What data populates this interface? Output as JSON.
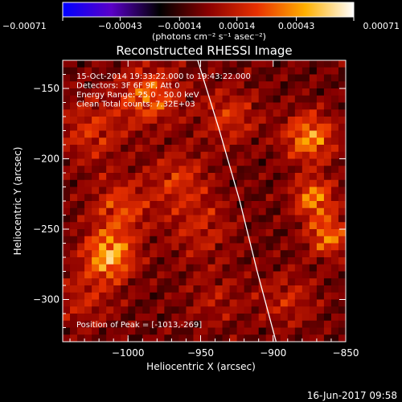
{
  "chart_data": {
    "type": "heatmap",
    "title": "Reconstructed RHESSI Image",
    "xlabel": "Heliocentric X (arcsec)",
    "ylabel": "Heliocentric Y (arcsec)",
    "xlim": [
      -1045,
      -850
    ],
    "ylim": [
      -330,
      -130
    ],
    "x_ticks": [
      {
        "value": -1000,
        "label": "−1000"
      },
      {
        "value": -950,
        "label": "−950"
      },
      {
        "value": -900,
        "label": "−900"
      },
      {
        "value": -850,
        "label": "−850"
      }
    ],
    "y_ticks": [
      {
        "value": -150,
        "label": "−150"
      },
      {
        "value": -200,
        "label": "−200"
      },
      {
        "value": -250,
        "label": "−250"
      },
      {
        "value": -300,
        "label": "−300"
      }
    ],
    "colorbar": {
      "range": [
        -0.00071,
        0.00071
      ],
      "ticks": [
        {
          "value": -0.00071,
          "label": "−0.00071"
        },
        {
          "value": -0.00043,
          "label": "−0.00043"
        },
        {
          "value": -0.00014,
          "label": "−0.00014"
        },
        {
          "value": 0.00014,
          "label": "0.00014"
        },
        {
          "value": 0.00043,
          "label": "0.00043"
        },
        {
          "value": 0.00071,
          "label": "0.00071"
        }
      ],
      "unit_label": "(photons cm⁻² s⁻¹ asec⁻²)",
      "colors": [
        "#0000ff",
        "#5a00c8",
        "#000000",
        "#8a0000",
        "#e83000",
        "#ffb000",
        "#ffffff"
      ]
    },
    "annotations": [
      "15-Oct-2014 19:33:22.000 to 19:43:22.000",
      "Detectors: 3F 6F 9F, Att 0",
      "Energy Range: 25.0 - 50.0 keV",
      "Clean     Total counts: 7.32E+03"
    ],
    "peak_label": "Position of Peak = [-1013,-269]",
    "peak": {
      "x": -1013,
      "y": -269
    },
    "limb": [
      {
        "x": -952,
        "y": -130
      },
      {
        "x": -937,
        "y": -180
      },
      {
        "x": -923,
        "y": -230
      },
      {
        "x": -911,
        "y": -280
      },
      {
        "x": -898,
        "y": -330
      }
    ],
    "hotspots": [
      {
        "x": -1013,
        "y": -269,
        "v": 1.0,
        "s": 12
      },
      {
        "x": -1005,
        "y": -235,
        "v": 0.55,
        "s": 14
      },
      {
        "x": -1025,
        "y": -180,
        "v": 0.45,
        "s": 16
      },
      {
        "x": -985,
        "y": -155,
        "v": 0.7,
        "s": 14
      },
      {
        "x": -965,
        "y": -215,
        "v": 0.45,
        "s": 14
      },
      {
        "x": -950,
        "y": -250,
        "v": 0.35,
        "s": 16
      },
      {
        "x": -930,
        "y": -170,
        "v": 0.45,
        "s": 14
      },
      {
        "x": -875,
        "y": -185,
        "v": 0.85,
        "s": 12
      },
      {
        "x": -872,
        "y": -228,
        "v": 0.8,
        "s": 10
      },
      {
        "x": -862,
        "y": -255,
        "v": 0.75,
        "s": 10
      },
      {
        "x": -890,
        "y": -300,
        "v": 0.35,
        "s": 14
      },
      {
        "x": -1030,
        "y": -300,
        "v": 0.35,
        "s": 14
      },
      {
        "x": -940,
        "y": -300,
        "v": 0.25,
        "s": 14
      }
    ]
  },
  "footer_timestamp": "16-Jun-2017 09:58"
}
